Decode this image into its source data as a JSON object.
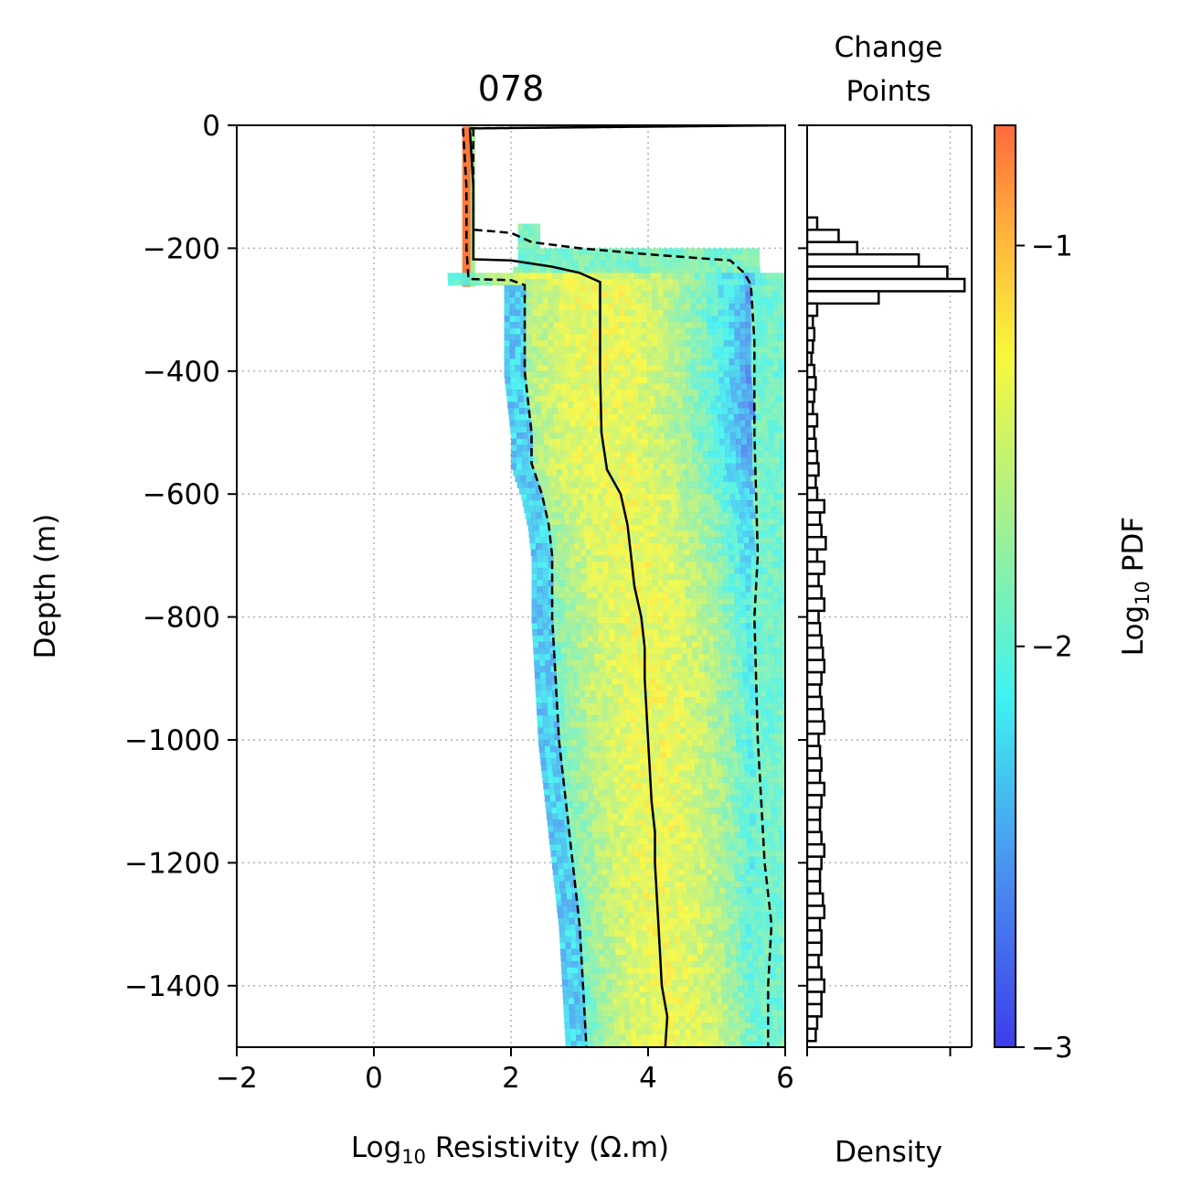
{
  "chart_data": [
    {
      "type": "heatmap",
      "title": "078",
      "xlabel_main": "Log",
      "xlabel_sub": "10",
      "xlabel_rest": " Resistivity (Ω.m)",
      "ylabel": "Depth (m)",
      "xlim": [
        -2,
        6
      ],
      "ylim": [
        -1500,
        0
      ],
      "x_ticks": [
        "−2",
        "0",
        "2",
        "4",
        "6"
      ],
      "y_ticks": [
        "0",
        "−200",
        "−400",
        "−600",
        "−800",
        "−1000",
        "−1200",
        "−1400"
      ],
      "grid": true,
      "series": [
        {
          "style": "solid",
          "points": [
            [
              1.4,
              -5
            ],
            [
              1.45,
              -100
            ],
            [
              1.45,
              -200
            ],
            [
              1.45,
              -218
            ],
            [
              2.0,
              -220
            ],
            [
              2.6,
              -230
            ],
            [
              3.0,
              -240
            ],
            [
              3.3,
              -255
            ],
            [
              3.3,
              -300
            ],
            [
              3.3,
              -400
            ],
            [
              3.32,
              -500
            ],
            [
              3.4,
              -560
            ],
            [
              3.6,
              -600
            ],
            [
              3.7,
              -650
            ],
            [
              3.75,
              -700
            ],
            [
              3.8,
              -750
            ],
            [
              3.9,
              -800
            ],
            [
              3.95,
              -850
            ],
            [
              3.95,
              -900
            ],
            [
              4.0,
              -1000
            ],
            [
              4.05,
              -1100
            ],
            [
              4.1,
              -1150
            ],
            [
              4.1,
              -1200
            ],
            [
              4.15,
              -1300
            ],
            [
              4.2,
              -1400
            ],
            [
              4.28,
              -1450
            ],
            [
              4.25,
              -1500
            ]
          ]
        },
        {
          "style": "dashed",
          "points": [
            [
              1.3,
              -5
            ],
            [
              1.35,
              -100
            ],
            [
              1.35,
              -200
            ],
            [
              1.38,
              -250
            ],
            [
              2.0,
              -252
            ],
            [
              2.2,
              -260
            ],
            [
              2.2,
              -400
            ],
            [
              2.3,
              -500
            ],
            [
              2.3,
              -550
            ],
            [
              2.45,
              -600
            ],
            [
              2.55,
              -650
            ],
            [
              2.6,
              -700
            ],
            [
              2.6,
              -800
            ],
            [
              2.65,
              -900
            ],
            [
              2.7,
              -1000
            ],
            [
              2.8,
              -1100
            ],
            [
              2.9,
              -1200
            ],
            [
              3.0,
              -1300
            ],
            [
              3.05,
              -1400
            ],
            [
              3.1,
              -1500
            ]
          ]
        },
        {
          "style": "dashed",
          "points": [
            [
              1.4,
              -5
            ],
            [
              6.0,
              0
            ],
            [
              1.45,
              -5
            ],
            [
              1.45,
              -170
            ],
            [
              2.0,
              -175
            ],
            [
              2.3,
              -190
            ],
            [
              3.0,
              -200
            ],
            [
              4.0,
              -210
            ],
            [
              5.2,
              -220
            ],
            [
              5.4,
              -240
            ],
            [
              5.5,
              -260
            ],
            [
              5.55,
              -350
            ],
            [
              5.55,
              -500
            ],
            [
              5.6,
              -700
            ],
            [
              5.55,
              -800
            ],
            [
              5.6,
              -1000
            ],
            [
              5.65,
              -1100
            ],
            [
              5.7,
              -1200
            ],
            [
              5.8,
              -1300
            ],
            [
              5.75,
              -1400
            ],
            [
              5.75,
              -1500
            ]
          ]
        }
      ],
      "heatmap_bands": [
        {
          "depth": [
            0,
            -255
          ],
          "x": [
            1.28,
            1.48
          ],
          "log_pdf": -0.5
        },
        {
          "depth": [
            -160,
            -260
          ],
          "x": [
            1.9,
            2.1
          ],
          "log_pdf": -2.0
        },
        {
          "depth": [
            -180,
            -260
          ],
          "x": [
            5.4,
            6.0
          ],
          "log_pdf": -2.2
        },
        {
          "depth": [
            -230,
            -1500
          ],
          "x": [
            2.0,
            6.0
          ],
          "log_pdf": -1.8
        }
      ]
    },
    {
      "type": "bar",
      "title_line1": "Change",
      "title_line2": "Points",
      "xlabel": "Density",
      "ylim": [
        -1500,
        0
      ],
      "depth_bins": [
        -160,
        -180,
        -200,
        -220,
        -240,
        -260,
        -280,
        -300,
        -320,
        -340,
        -360,
        -380,
        -400,
        -420,
        -440,
        -460,
        -480,
        -500,
        -520,
        -540,
        -560,
        -580,
        -600,
        -620,
        -640,
        -660,
        -680,
        -700,
        -720,
        -740,
        -760,
        -780,
        -800,
        -820,
        -840,
        -860,
        -880,
        -900,
        -920,
        -940,
        -960,
        -980,
        -1000,
        -1020,
        -1040,
        -1060,
        -1080,
        -1100,
        -1120,
        -1140,
        -1160,
        -1180,
        -1200,
        -1220,
        -1240,
        -1260,
        -1280,
        -1300,
        -1320,
        -1340,
        -1360,
        -1380,
        -1400,
        -1420,
        -1440,
        -1460,
        -1480
      ],
      "values": [
        0.07,
        0.22,
        0.35,
        0.78,
        0.98,
        1.1,
        0.5,
        0.07,
        0.04,
        0.05,
        0.04,
        0.03,
        0.05,
        0.06,
        0.05,
        0.04,
        0.07,
        0.05,
        0.06,
        0.07,
        0.08,
        0.06,
        0.07,
        0.12,
        0.09,
        0.1,
        0.13,
        0.07,
        0.12,
        0.08,
        0.1,
        0.12,
        0.08,
        0.09,
        0.1,
        0.11,
        0.12,
        0.1,
        0.09,
        0.1,
        0.11,
        0.12,
        0.08,
        0.09,
        0.1,
        0.09,
        0.12,
        0.1,
        0.09,
        0.09,
        0.1,
        0.12,
        0.1,
        0.09,
        0.09,
        0.11,
        0.12,
        0.09,
        0.1,
        0.1,
        0.08,
        0.1,
        0.12,
        0.1,
        0.1,
        0.07,
        0.06
      ],
      "xlim": [
        0,
        1.15
      ],
      "grid": true
    }
  ],
  "colorbar": {
    "label_main": "Log",
    "label_sub": "10",
    "label_rest": " PDF",
    "ticks": [
      "−1",
      "−2",
      "−3"
    ],
    "range": [
      -3,
      -0.7
    ]
  }
}
